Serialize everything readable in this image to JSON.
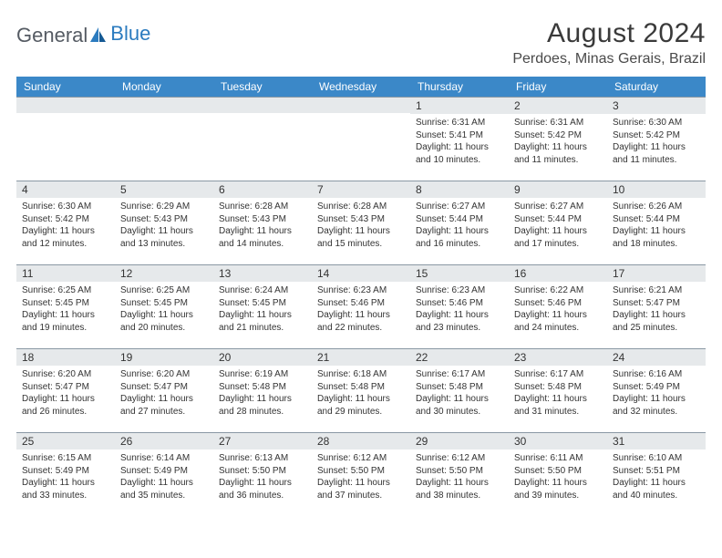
{
  "logo": {
    "text1": "General",
    "text2": "Blue"
  },
  "header": {
    "month_title": "August 2024",
    "location": "Perdoes, Minas Gerais, Brazil"
  },
  "colors": {
    "header_bg": "#3b88c8",
    "daynum_bg": "#e6e9eb",
    "daynum_border": "#8a98a4",
    "text": "#333333",
    "logo_gray": "#555b63",
    "logo_blue": "#2b7bbf",
    "background": "#ffffff"
  },
  "calendar": {
    "days_of_week": [
      "Sunday",
      "Monday",
      "Tuesday",
      "Wednesday",
      "Thursday",
      "Friday",
      "Saturday"
    ],
    "weeks": [
      [
        {
          "num": "",
          "sunrise": "",
          "sunset": "",
          "daylight": ""
        },
        {
          "num": "",
          "sunrise": "",
          "sunset": "",
          "daylight": ""
        },
        {
          "num": "",
          "sunrise": "",
          "sunset": "",
          "daylight": ""
        },
        {
          "num": "",
          "sunrise": "",
          "sunset": "",
          "daylight": ""
        },
        {
          "num": "1",
          "sunrise": "Sunrise: 6:31 AM",
          "sunset": "Sunset: 5:41 PM",
          "daylight": "Daylight: 11 hours and 10 minutes."
        },
        {
          "num": "2",
          "sunrise": "Sunrise: 6:31 AM",
          "sunset": "Sunset: 5:42 PM",
          "daylight": "Daylight: 11 hours and 11 minutes."
        },
        {
          "num": "3",
          "sunrise": "Sunrise: 6:30 AM",
          "sunset": "Sunset: 5:42 PM",
          "daylight": "Daylight: 11 hours and 11 minutes."
        }
      ],
      [
        {
          "num": "4",
          "sunrise": "Sunrise: 6:30 AM",
          "sunset": "Sunset: 5:42 PM",
          "daylight": "Daylight: 11 hours and 12 minutes."
        },
        {
          "num": "5",
          "sunrise": "Sunrise: 6:29 AM",
          "sunset": "Sunset: 5:43 PM",
          "daylight": "Daylight: 11 hours and 13 minutes."
        },
        {
          "num": "6",
          "sunrise": "Sunrise: 6:28 AM",
          "sunset": "Sunset: 5:43 PM",
          "daylight": "Daylight: 11 hours and 14 minutes."
        },
        {
          "num": "7",
          "sunrise": "Sunrise: 6:28 AM",
          "sunset": "Sunset: 5:43 PM",
          "daylight": "Daylight: 11 hours and 15 minutes."
        },
        {
          "num": "8",
          "sunrise": "Sunrise: 6:27 AM",
          "sunset": "Sunset: 5:44 PM",
          "daylight": "Daylight: 11 hours and 16 minutes."
        },
        {
          "num": "9",
          "sunrise": "Sunrise: 6:27 AM",
          "sunset": "Sunset: 5:44 PM",
          "daylight": "Daylight: 11 hours and 17 minutes."
        },
        {
          "num": "10",
          "sunrise": "Sunrise: 6:26 AM",
          "sunset": "Sunset: 5:44 PM",
          "daylight": "Daylight: 11 hours and 18 minutes."
        }
      ],
      [
        {
          "num": "11",
          "sunrise": "Sunrise: 6:25 AM",
          "sunset": "Sunset: 5:45 PM",
          "daylight": "Daylight: 11 hours and 19 minutes."
        },
        {
          "num": "12",
          "sunrise": "Sunrise: 6:25 AM",
          "sunset": "Sunset: 5:45 PM",
          "daylight": "Daylight: 11 hours and 20 minutes."
        },
        {
          "num": "13",
          "sunrise": "Sunrise: 6:24 AM",
          "sunset": "Sunset: 5:45 PM",
          "daylight": "Daylight: 11 hours and 21 minutes."
        },
        {
          "num": "14",
          "sunrise": "Sunrise: 6:23 AM",
          "sunset": "Sunset: 5:46 PM",
          "daylight": "Daylight: 11 hours and 22 minutes."
        },
        {
          "num": "15",
          "sunrise": "Sunrise: 6:23 AM",
          "sunset": "Sunset: 5:46 PM",
          "daylight": "Daylight: 11 hours and 23 minutes."
        },
        {
          "num": "16",
          "sunrise": "Sunrise: 6:22 AM",
          "sunset": "Sunset: 5:46 PM",
          "daylight": "Daylight: 11 hours and 24 minutes."
        },
        {
          "num": "17",
          "sunrise": "Sunrise: 6:21 AM",
          "sunset": "Sunset: 5:47 PM",
          "daylight": "Daylight: 11 hours and 25 minutes."
        }
      ],
      [
        {
          "num": "18",
          "sunrise": "Sunrise: 6:20 AM",
          "sunset": "Sunset: 5:47 PM",
          "daylight": "Daylight: 11 hours and 26 minutes."
        },
        {
          "num": "19",
          "sunrise": "Sunrise: 6:20 AM",
          "sunset": "Sunset: 5:47 PM",
          "daylight": "Daylight: 11 hours and 27 minutes."
        },
        {
          "num": "20",
          "sunrise": "Sunrise: 6:19 AM",
          "sunset": "Sunset: 5:48 PM",
          "daylight": "Daylight: 11 hours and 28 minutes."
        },
        {
          "num": "21",
          "sunrise": "Sunrise: 6:18 AM",
          "sunset": "Sunset: 5:48 PM",
          "daylight": "Daylight: 11 hours and 29 minutes."
        },
        {
          "num": "22",
          "sunrise": "Sunrise: 6:17 AM",
          "sunset": "Sunset: 5:48 PM",
          "daylight": "Daylight: 11 hours and 30 minutes."
        },
        {
          "num": "23",
          "sunrise": "Sunrise: 6:17 AM",
          "sunset": "Sunset: 5:48 PM",
          "daylight": "Daylight: 11 hours and 31 minutes."
        },
        {
          "num": "24",
          "sunrise": "Sunrise: 6:16 AM",
          "sunset": "Sunset: 5:49 PM",
          "daylight": "Daylight: 11 hours and 32 minutes."
        }
      ],
      [
        {
          "num": "25",
          "sunrise": "Sunrise: 6:15 AM",
          "sunset": "Sunset: 5:49 PM",
          "daylight": "Daylight: 11 hours and 33 minutes."
        },
        {
          "num": "26",
          "sunrise": "Sunrise: 6:14 AM",
          "sunset": "Sunset: 5:49 PM",
          "daylight": "Daylight: 11 hours and 35 minutes."
        },
        {
          "num": "27",
          "sunrise": "Sunrise: 6:13 AM",
          "sunset": "Sunset: 5:50 PM",
          "daylight": "Daylight: 11 hours and 36 minutes."
        },
        {
          "num": "28",
          "sunrise": "Sunrise: 6:12 AM",
          "sunset": "Sunset: 5:50 PM",
          "daylight": "Daylight: 11 hours and 37 minutes."
        },
        {
          "num": "29",
          "sunrise": "Sunrise: 6:12 AM",
          "sunset": "Sunset: 5:50 PM",
          "daylight": "Daylight: 11 hours and 38 minutes."
        },
        {
          "num": "30",
          "sunrise": "Sunrise: 6:11 AM",
          "sunset": "Sunset: 5:50 PM",
          "daylight": "Daylight: 11 hours and 39 minutes."
        },
        {
          "num": "31",
          "sunrise": "Sunrise: 6:10 AM",
          "sunset": "Sunset: 5:51 PM",
          "daylight": "Daylight: 11 hours and 40 minutes."
        }
      ]
    ]
  }
}
